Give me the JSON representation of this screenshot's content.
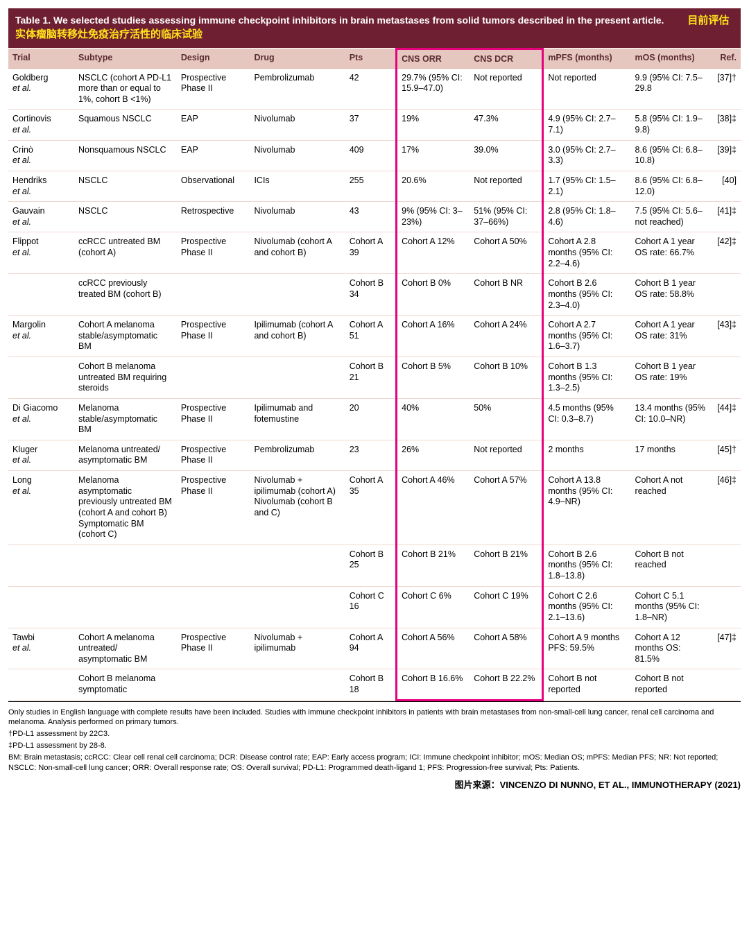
{
  "title_en": "Table 1.  We selected studies assessing immune checkpoint inhibitors in brain metastases from solid tumors described in the present article.",
  "title_zh": "目前评估实体瘤脑转移灶免疫治疗活性的临床试验",
  "columns": {
    "trial": "Trial",
    "subtype": "Subtype",
    "design": "Design",
    "drug": "Drug",
    "pts": "Pts",
    "cns_orr": "CNS ORR",
    "cns_dcr": "CNS DCR",
    "mpfs": "mPFS (months)",
    "mos": "mOS (months)",
    "ref": "Ref."
  },
  "rows": [
    {
      "trial_a": "Goldberg",
      "trial_b": "et al.",
      "sub": "NSCLC (cohort A PD-L1 more than or equal to 1%, cohort B <1%)",
      "design": "Prospective Phase II",
      "drug": "Pembrolizumab",
      "pts": "42",
      "orr": "29.7% (95% CI: 15.9–47.0)",
      "dcr": "Not reported",
      "mpfs": "Not reported",
      "mos": "9.9 (95% CI: 7.5–29.8",
      "ref": "[37]†"
    },
    {
      "trial_a": "Cortinovis",
      "trial_b": "et al.",
      "sub": "Squamous NSCLC",
      "design": "EAP",
      "drug": "Nivolumab",
      "pts": "37",
      "orr": "19%",
      "dcr": "47.3%",
      "mpfs": "4.9 (95% CI: 2.7–7.1)",
      "mos": "5.8 (95% CI: 1.9–9.8)",
      "ref": "[38]‡"
    },
    {
      "trial_a": "Crinò",
      "trial_b": " et al.",
      "sub": "Nonsquamous NSCLC",
      "design": "EAP",
      "drug": "Nivolumab",
      "pts": "409",
      "orr": "17%",
      "dcr": "39.0%",
      "mpfs": "3.0 (95% CI: 2.7–3.3)",
      "mos": "8.6 (95% CI: 6.8–10.8)",
      "ref": "[39]‡"
    },
    {
      "trial_a": "Hendriks",
      "trial_b": "et al.",
      "sub": "NSCLC",
      "design": "Observational",
      "drug": "ICIs",
      "pts": "255",
      "orr": "20.6%",
      "dcr": "Not reported",
      "mpfs": "1.7 (95% CI: 1.5–2.1)",
      "mos": "8.6 (95% CI: 6.8–12.0)",
      "ref": "[40]"
    },
    {
      "trial_a": "Gauvain",
      "trial_b": "et al.",
      "sub": "NSCLC",
      "design": "Retrospective",
      "drug": "Nivolumab",
      "pts": "43",
      "orr": "9% (95% CI: 3–23%)",
      "dcr": "51% (95% CI: 37–66%)",
      "mpfs": "2.8 (95% CI: 1.8–4.6)",
      "mos": "7.5 (95% CI: 5.6–not reached)",
      "ref": "[41]‡"
    },
    {
      "trial_a": "Flippot",
      "trial_b": " et al.",
      "sub": "ccRCC untreated BM (cohort A)",
      "design": "Prospective Phase II",
      "drug": "Nivolumab (cohort A and cohort B)",
      "pts": "Cohort A 39",
      "orr": "Cohort A 12%",
      "dcr": "Cohort A 50%",
      "mpfs": "Cohort A 2.8 months (95% CI: 2.2–4.6)",
      "mos": "Cohort A 1 year OS rate: 66.7%",
      "ref": "[42]‡"
    },
    {
      "sub": "ccRCC previously treated BM (cohort B)",
      "pts": "Cohort B 34",
      "orr": "Cohort B 0%",
      "dcr": "Cohort B NR",
      "mpfs": "Cohort B 2.6 months (95% CI: 2.3–4.0)",
      "mos": "Cohort B 1 year OS rate: 58.8%"
    },
    {
      "trial_a": "Margolin",
      "trial_b": "et al.",
      "sub": "Cohort A melanoma stable/asymptomatic BM",
      "design": "Prospective Phase II",
      "drug": "Ipilimumab (cohort A and cohort B)",
      "pts": "Cohort A 51",
      "orr": "Cohort A 16%",
      "dcr": "Cohort A 24%",
      "mpfs": "Cohort A 2.7 months (95% CI: 1.6–3.7)",
      "mos": "Cohort A 1 year OS rate: 31%",
      "ref": "[43]‡"
    },
    {
      "sub": "Cohort B melanoma untreated BM requiring steroids",
      "pts": "Cohort B 21",
      "orr": "Cohort B 5%",
      "dcr": "Cohort B 10%",
      "mpfs": "Cohort B 1.3 months (95% CI: 1.3–2.5)",
      "mos": "Cohort B 1 year OS rate: 19%"
    },
    {
      "trial_a": "Di Giacomo",
      "trial_b": "et al.",
      "sub": "Melanoma stable/asymptomatic BM",
      "design": "Prospective Phase II",
      "drug": "Ipilimumab and fotemustine",
      "pts": "20",
      "orr": "40%",
      "dcr": "50%",
      "mpfs": "4.5 months (95% CI: 0.3–8.7)",
      "mos": "13.4 months (95% CI: 10.0–NR)",
      "ref": "[44]‡"
    },
    {
      "trial_a": "Kluger",
      "trial_b": " et al.",
      "sub": "Melanoma untreated/ asymptomatic BM",
      "design": "Prospective Phase II",
      "drug": "Pembrolizumab",
      "pts": "23",
      "orr": "26%",
      "dcr": "Not reported",
      "mpfs": "2 months",
      "mos": "17 months",
      "ref": "[45]†"
    },
    {
      "trial_a": "Long",
      "trial_b": " et al.",
      "sub": "Melanoma asymptomatic previously untreated BM (cohort A and cohort B) Symptomatic BM (cohort C)",
      "design": "Prospective Phase II",
      "drug": "Nivolumab + ipilimumab (cohort A) Nivolumab (cohort B and C)",
      "pts": "Cohort A 35",
      "orr": "Cohort A 46%",
      "dcr": "Cohort A 57%",
      "mpfs": "Cohort A 13.8 months (95% CI: 4.9–NR)",
      "mos": "Cohort A not reached",
      "ref": "[46]‡"
    },
    {
      "pts": "Cohort B 25",
      "orr": "Cohort B 21%",
      "dcr": "Cohort B 21%",
      "mpfs": "Cohort B 2.6 months (95% CI: 1.8–13.8)",
      "mos": "Cohort B not reached"
    },
    {
      "pts": "Cohort C 16",
      "orr": "Cohort C 6%",
      "dcr": "Cohort C 19%",
      "mpfs": "Cohort C 2.6 months (95% CI: 2.1–13.6)",
      "mos": "Cohort C 5.1 months (95% CI: 1.8–NR)"
    },
    {
      "trial_a": "Tawbi",
      "trial_b": " et al.",
      "sub": "Cohort A melanoma untreated/ asymptomatic BM",
      "design": "Prospective Phase II",
      "drug": "Nivolumab + ipilimumab",
      "pts": "Cohort A 94",
      "orr": "Cohort A 56%",
      "dcr": "Cohort A 58%",
      "mpfs": "Cohort A 9 months PFS: 59.5%",
      "mos": "Cohort A 12 months OS: 81.5%",
      "ref": "[47]‡"
    },
    {
      "sub": "Cohort B melanoma symptomatic",
      "pts": "Cohort B 18",
      "orr": "Cohort B 16.6%",
      "dcr": "Cohort B 22.2%",
      "mpfs": "Cohort B not reported",
      "mos": "Cohort B not reported"
    }
  ],
  "footnotes": {
    "f1": "Only studies in English language with complete results have been included. Studies with immune checkpoint inhibitors in patients with brain metastases from non-small-cell lung cancer, renal cell carcinoma and melanoma. Analysis performed on primary tumors.",
    "f2": "†PD-L1 assessment by 22C3.",
    "f3": "‡PD-L1 assessment by 28-8.",
    "f4": "BM: Brain metastasis; ccRCC: Clear cell renal cell carcinoma; DCR: Disease control rate; EAP: Early access program; ICI: Immune checkpoint inhibitor; mOS: Median OS; mPFS: Median PFS; NR: Not reported; NSCLC: Non-small-cell lung cancer; ORR: Overall response rate; OS: Overall survival; PD-L1: Programmed death-ligand 1; PFS: Progression-free survival; Pts: Patients."
  },
  "source": "图片来源：VINCENZO DI NUNNO, ET AL., IMMUNOTHERAPY (2021)"
}
